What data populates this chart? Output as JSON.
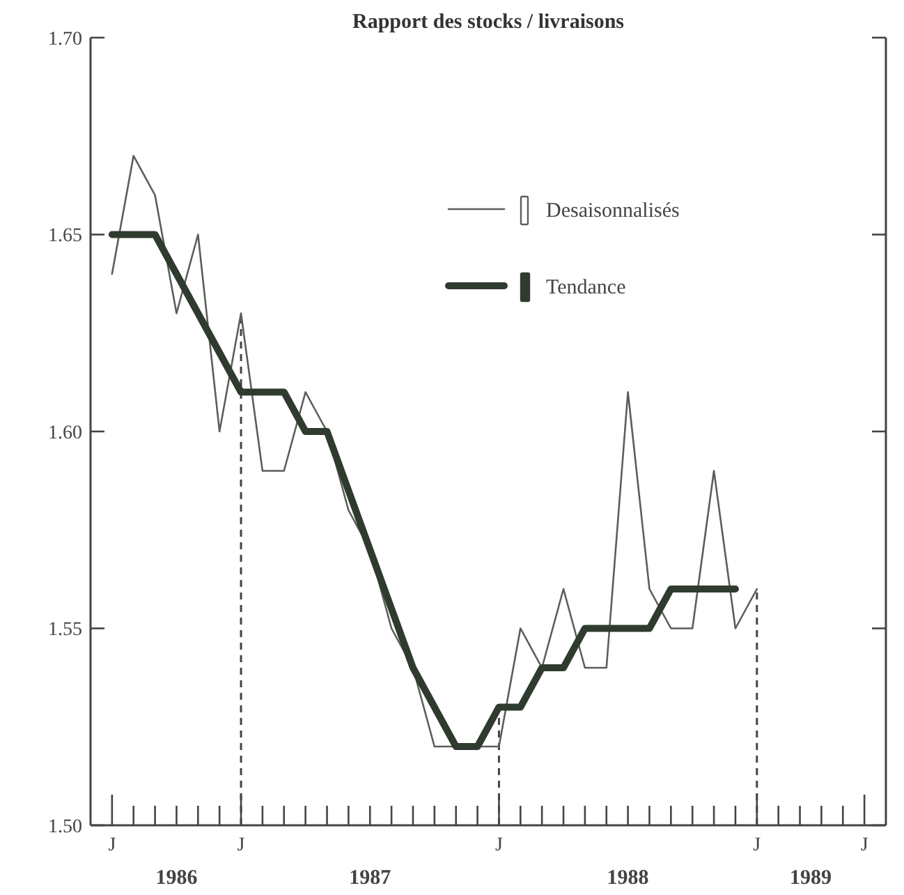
{
  "chart_data": {
    "type": "line",
    "title": "Rapport des stocks / livraisons",
    "ylim": [
      1.5,
      1.7
    ],
    "yticks": [
      {
        "value": 1.5,
        "label": "1.50"
      },
      {
        "value": 1.55,
        "label": "1.55"
      },
      {
        "value": 1.6,
        "label": "1.60"
      },
      {
        "value": 1.65,
        "label": "1.65"
      },
      {
        "value": 1.7,
        "label": "1.70"
      }
    ],
    "categories": [
      "J",
      null,
      null,
      null,
      null,
      null,
      "J",
      null,
      null,
      null,
      null,
      null,
      null,
      null,
      null,
      null,
      null,
      null,
      "J",
      null,
      null,
      null,
      null,
      null,
      null,
      null,
      null,
      null,
      null,
      null,
      "J",
      null,
      null,
      null,
      null,
      "J"
    ],
    "series": [
      {
        "name": "Desaisonnalisés",
        "color": "#5a5f58",
        "values": [
          1.64,
          1.67,
          1.66,
          1.63,
          1.65,
          1.6,
          1.63,
          1.59,
          1.59,
          1.61,
          1.6,
          1.58,
          1.57,
          1.55,
          1.54,
          1.52,
          1.52,
          1.52,
          1.52,
          1.55,
          1.54,
          1.56,
          1.54,
          1.54,
          1.61,
          1.56,
          1.55,
          1.55,
          1.59,
          1.55,
          1.56,
          null,
          null,
          null,
          null,
          null
        ]
      },
      {
        "name": "Tendance",
        "color": "#2f3b2f",
        "values": [
          1.65,
          1.65,
          1.65,
          1.64,
          1.63,
          1.62,
          1.61,
          1.61,
          1.61,
          1.6,
          1.6,
          1.585,
          1.57,
          1.555,
          1.54,
          1.53,
          1.52,
          1.52,
          1.53,
          1.53,
          1.54,
          1.54,
          1.55,
          1.55,
          1.55,
          1.55,
          1.56,
          1.56,
          1.56,
          1.56,
          null,
          null,
          null,
          null,
          null,
          null
        ]
      }
    ],
    "annotations": [
      "1986",
      "1987",
      "1988",
      "1989"
    ],
    "legend": "top right",
    "grid": false,
    "line_style": "solid",
    "marker": "none"
  }
}
